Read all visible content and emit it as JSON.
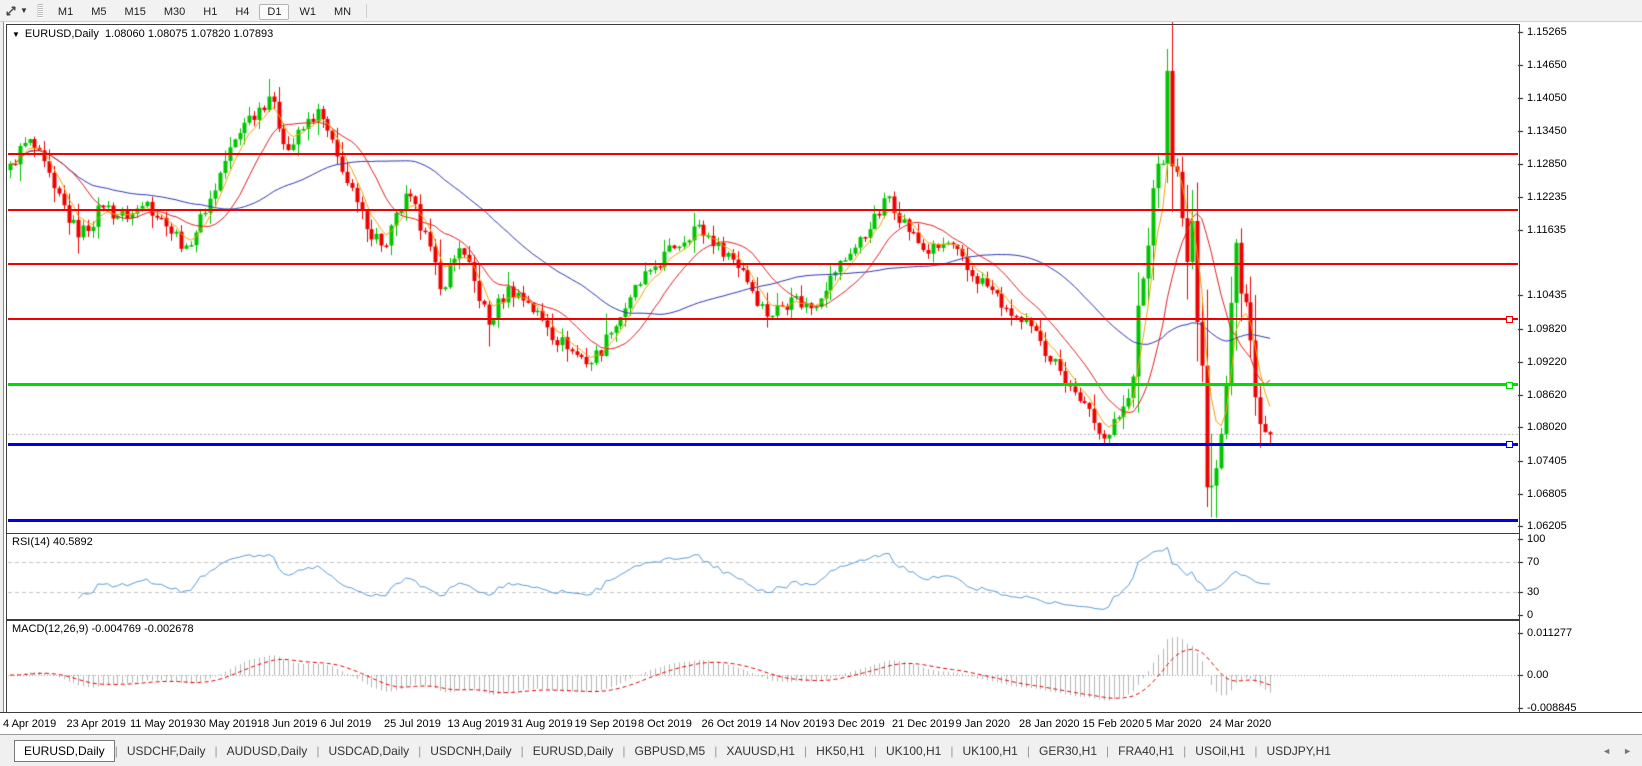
{
  "toolbar": {
    "timeframes": [
      "M1",
      "M5",
      "M15",
      "M30",
      "H1",
      "H4",
      "D1",
      "W1",
      "MN"
    ],
    "active_timeframe": "D1",
    "chart_tool_icon": "diagonal-arrows-icon",
    "dropdown_icon": "caret-down"
  },
  "chart_header": {
    "symbol_period": "EURUSD,Daily",
    "quote_line": "1.08060 1.08075 1.07820 1.07893"
  },
  "panes": {
    "rsi_label": "RSI(14) 40.5892",
    "macd_label": "MACD(12,26,9) -0.004769 -0.002678"
  },
  "chart_data": {
    "type": "candlestick",
    "symbol": "EURUSD",
    "timeframe": "Daily",
    "ohlc_current": {
      "open": 1.0806,
      "high": 1.08075,
      "low": 1.0782,
      "close": 1.07893
    },
    "current_price": 1.07893,
    "price_range": {
      "top": 1.1539,
      "bottom": 1.0612
    },
    "price_axis_ticks": [
      1.15265,
      1.1465,
      1.1405,
      1.1345,
      1.1285,
      1.12235,
      1.11635,
      1.10435,
      1.0982,
      1.0922,
      1.0862,
      1.0802,
      1.07405,
      1.06805,
      1.06205
    ],
    "x_labels": [
      "4 Apr 2019",
      "23 Apr 2019",
      "11 May 2019",
      "30 May 2019",
      "18 Jun 2019",
      "6 Jul 2019",
      "25 Jul 2019",
      "13 Aug 2019",
      "31 Aug 2019",
      "19 Sep 2019",
      "8 Oct 2019",
      "26 Oct 2019",
      "14 Nov 2019",
      "3 Dec 2019",
      "21 Dec 2019",
      "9 Jan 2020",
      "28 Jan 2020",
      "15 Feb 2020",
      "5 Mar 2020",
      "24 Mar 2020"
    ],
    "levels": [
      {
        "price": 1.13034,
        "color": "#f00000",
        "width": 2,
        "text": "#fff",
        "handle": false
      },
      {
        "price": 1.12004,
        "color": "#f00000",
        "width": 2,
        "text": "#fff",
        "handle": false
      },
      {
        "price": 1.11009,
        "color": "#f00000",
        "width": 2,
        "text": "#fff",
        "handle": false
      },
      {
        "price": 1.10008,
        "color": "#f00000",
        "width": 2,
        "text": "#fff",
        "handle": true
      },
      {
        "price": 1.088,
        "color": "#00dd00",
        "width": 3,
        "text": "#000",
        "handle": true
      },
      {
        "price": 1.07712,
        "color": "#0000e8",
        "width": 3,
        "text": "#fff",
        "handle": true
      },
      {
        "price": 1.06306,
        "color": "#0000e8",
        "width": 3,
        "text": "#fff",
        "handle": false
      }
    ],
    "candle_count": 259,
    "close_anchors": [
      [
        0,
        1.1285
      ],
      [
        4,
        1.133
      ],
      [
        9,
        1.124
      ],
      [
        14,
        1.115
      ],
      [
        19,
        1.1205
      ],
      [
        24,
        1.1185
      ],
      [
        28,
        1.1215
      ],
      [
        32,
        1.117
      ],
      [
        36,
        1.1135
      ],
      [
        40,
        1.1195
      ],
      [
        44,
        1.129
      ],
      [
        48,
        1.136
      ],
      [
        53,
        1.1408
      ],
      [
        57,
        1.131
      ],
      [
        63,
        1.1385
      ],
      [
        68,
        1.127
      ],
      [
        73,
        1.1165
      ],
      [
        77,
        1.1135
      ],
      [
        81,
        1.123
      ],
      [
        85,
        1.116
      ],
      [
        88,
        1.1055
      ],
      [
        92,
        1.113
      ],
      [
        95,
        1.107
      ],
      [
        98,
        1.099
      ],
      [
        102,
        1.106
      ],
      [
        106,
        1.103
      ],
      [
        110,
        1.0985
      ],
      [
        114,
        1.0945
      ],
      [
        119,
        1.092
      ],
      [
        123,
        1.0975
      ],
      [
        127,
        1.104
      ],
      [
        131,
        1.109
      ],
      [
        136,
        1.113
      ],
      [
        140,
        1.117
      ],
      [
        145,
        1.114
      ],
      [
        150,
        1.109
      ],
      [
        155,
        1.1005
      ],
      [
        160,
        1.104
      ],
      [
        164,
        1.102
      ],
      [
        168,
        1.108
      ],
      [
        172,
        1.112
      ],
      [
        176,
        1.1165
      ],
      [
        180,
        1.1225
      ],
      [
        184,
        1.116
      ],
      [
        188,
        1.112
      ],
      [
        192,
        1.114
      ],
      [
        196,
        1.109
      ],
      [
        200,
        1.106
      ],
      [
        204,
        1.102
      ],
      [
        207,
        1.0995
      ],
      [
        211,
        1.096
      ],
      [
        215,
        1.0905
      ],
      [
        219,
        1.085
      ],
      [
        222,
        1.081
      ],
      [
        225,
        1.0788
      ],
      [
        228,
        1.084
      ],
      [
        230,
        1.0895
      ],
      [
        231,
        1.1025
      ],
      [
        233,
        1.1135
      ],
      [
        234,
        1.124
      ],
      [
        235,
        1.1285
      ],
      [
        236,
        1.1285
      ],
      [
        237,
        1.1455
      ],
      [
        238,
        1.128
      ],
      [
        239,
        1.127
      ],
      [
        240,
        1.1185
      ],
      [
        241,
        1.1105
      ],
      [
        242,
        1.118
      ],
      [
        243,
        1.0995
      ],
      [
        244,
        1.0915
      ],
      [
        245,
        1.0692
      ],
      [
        246,
        1.0695
      ],
      [
        247,
        1.0727
      ],
      [
        248,
        1.079
      ],
      [
        249,
        1.088
      ],
      [
        250,
        1.103
      ],
      [
        251,
        1.114
      ],
      [
        252,
        1.1047
      ],
      [
        253,
        1.1031
      ],
      [
        254,
        1.0961
      ],
      [
        255,
        1.0857
      ],
      [
        256,
        1.0808
      ],
      [
        257,
        1.0793
      ],
      [
        258,
        1.07893
      ]
    ],
    "wick_overrides": {
      "14": {
        "low": 1.112
      },
      "53": {
        "high": 1.144
      },
      "98": {
        "low": 1.095
      },
      "119": {
        "low": 1.0905
      },
      "225": {
        "low": 1.0772
      },
      "237": {
        "high": 1.1495
      },
      "244": {
        "high": 1.104
      },
      "245": {
        "low": 1.0656
      },
      "246": {
        "low": 1.0637,
        "high": 1.079
      },
      "247": {
        "low": 1.0636
      },
      "251": {
        "high": 1.1147
      },
      "258": {
        "low": 1.0768
      }
    },
    "colors": {
      "up": "#00c400",
      "down": "#ef0000",
      "ma_fast": "#f5a000",
      "ma_mid": "#dd2020",
      "ma_slow": "#2b35b5",
      "rsi": "#5a9bd4",
      "rsi_level": "#c4c4c4",
      "macd_hist": "#b6b6b6",
      "macd_signal": "#e00000",
      "current_line": "#b0b0b0",
      "current_badge_bg": "#000000",
      "current_badge_text": "#ffffff"
    },
    "ma_periods": {
      "fast": 5,
      "mid": 13,
      "slow": 40
    },
    "rsi": {
      "period": 14,
      "value": 40.5892,
      "axis_ticks": [
        100,
        70,
        30,
        0
      ],
      "levels": [
        70,
        30
      ],
      "range": [
        0,
        100
      ]
    },
    "macd": {
      "fast": 12,
      "slow": 26,
      "signal": 9,
      "main_value": -0.004769,
      "signal_value": -0.002678,
      "axis_ticks": [
        {
          "label": "0.011277",
          "value": 0.011277
        },
        {
          "label": "0.00",
          "value": 0.0
        },
        {
          "label": "-0.008845",
          "value": -0.008845
        }
      ],
      "pane_range": {
        "top": 0.0145,
        "bottom": -0.00965
      }
    }
  },
  "tabs": {
    "items": [
      {
        "label": "EURUSD,Daily",
        "active": true
      },
      {
        "label": "USDCHF,Daily",
        "active": false
      },
      {
        "label": "AUDUSD,Daily",
        "active": false
      },
      {
        "label": "USDCAD,Daily",
        "active": false
      },
      {
        "label": "USDCNH,Daily",
        "active": false
      },
      {
        "label": "EURUSD,Daily",
        "active": false
      },
      {
        "label": "GBPUSD,M5",
        "active": false
      },
      {
        "label": "XAUUSD,H1",
        "active": false
      },
      {
        "label": "HK50,H1",
        "active": false
      },
      {
        "label": "UK100,H1",
        "active": false
      },
      {
        "label": "UK100,H1",
        "active": false
      },
      {
        "label": "GER30,H1",
        "active": false
      },
      {
        "label": "FRA40,H1",
        "active": false
      },
      {
        "label": "USOil,H1",
        "active": false
      },
      {
        "label": "USDJPY,H1",
        "active": false
      }
    ],
    "nav_left": "◄",
    "nav_right": "►"
  }
}
